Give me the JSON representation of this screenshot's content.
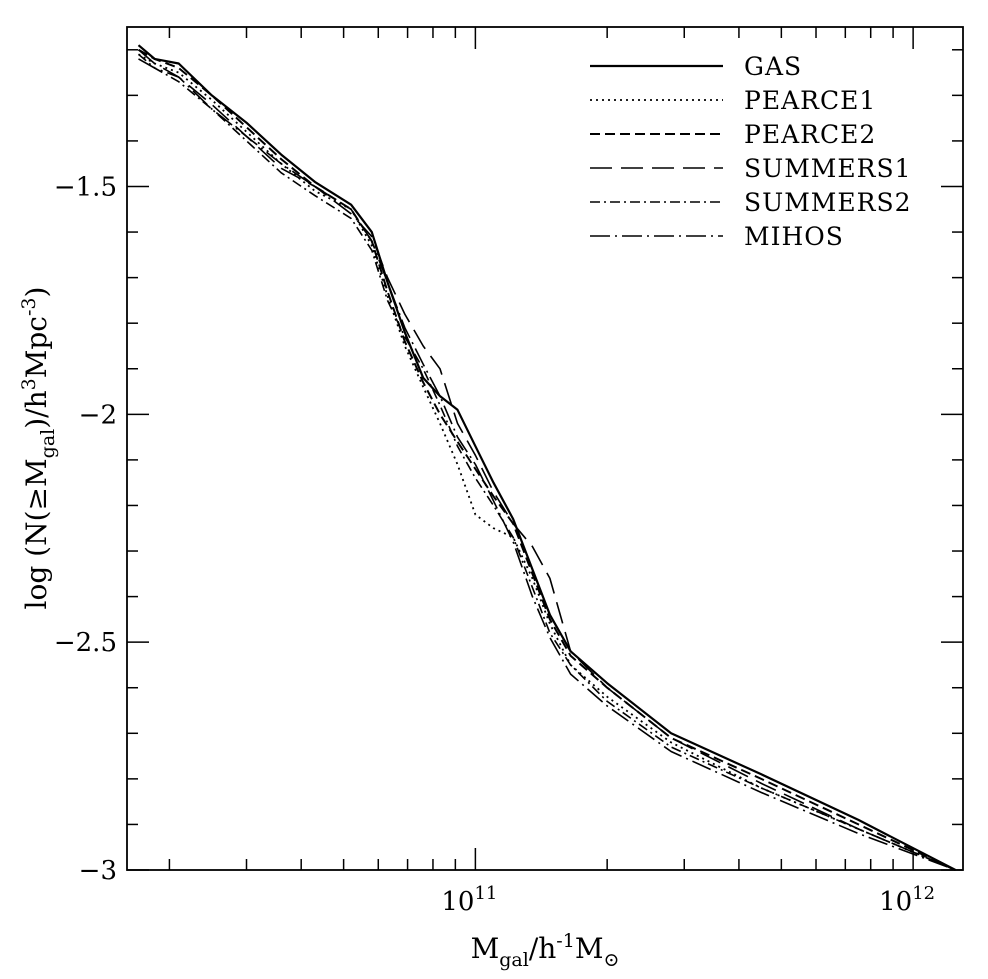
{
  "chart_data": {
    "type": "line",
    "title": "",
    "xlabel": {
      "main": "M",
      "sub1": "gal",
      "mid": "/h",
      "sup": "-1",
      "tail": "M",
      "sub2": "⊙"
    },
    "ylabel": {
      "lead": "log  (N(≥M",
      "sub": "gal",
      "mid": ")/h",
      "sup1": "3",
      "mpc": "Mpc",
      "sup2": "-3",
      "tail": ")"
    },
    "x_scale": "log",
    "xlim": [
      16000000000.0,
      1300000000000.0
    ],
    "ylim": [
      -3.0,
      -1.15
    ],
    "x_ticks": [
      {
        "base": "10",
        "exp": "11",
        "value": 100000000000.0
      },
      {
        "base": "10",
        "exp": "12",
        "value": 1000000000000.0
      }
    ],
    "y_ticks": [
      {
        "label": "−1.5",
        "value": -1.5
      },
      {
        "label": "−2",
        "value": -2.0
      },
      {
        "label": "−2.5",
        "value": -2.5
      },
      {
        "label": "−3",
        "value": -3.0
      }
    ],
    "legend_position": "top-right",
    "series": [
      {
        "name": "GAS",
        "dash": "solid",
        "width": 2.2,
        "x": [
          17000000000.0,
          18500000000.0,
          21000000000.0,
          25000000000.0,
          30000000000.0,
          36000000000.0,
          43000000000.0,
          52000000000.0,
          58000000000.0,
          63000000000.0,
          69000000000.0,
          76000000000.0,
          83000000000.0,
          91000000000.0,
          100000000000.0,
          110000000000.0,
          122000000000.0,
          135000000000.0,
          148000000000.0,
          165000000000.0,
          200000000000.0,
          280000000000.0,
          450000000000.0,
          750000000000.0,
          1250000000000.0
        ],
        "y": [
          -1.19,
          -1.22,
          -1.23,
          -1.3,
          -1.36,
          -1.43,
          -1.49,
          -1.54,
          -1.6,
          -1.71,
          -1.82,
          -1.92,
          -1.96,
          -1.99,
          -2.07,
          -2.15,
          -2.23,
          -2.34,
          -2.44,
          -2.52,
          -2.59,
          -2.7,
          -2.79,
          -2.89,
          -3.0
        ]
      },
      {
        "name": "PEARCE1",
        "dash": "2,4",
        "width": 1.8,
        "x": [
          17000000000.0,
          18500000000.0,
          21000000000.0,
          25000000000.0,
          30000000000.0,
          36000000000.0,
          43000000000.0,
          52000000000.0,
          58000000000.0,
          63000000000.0,
          69000000000.0,
          76000000000.0,
          83000000000.0,
          91000000000.0,
          100000000000.0,
          110000000000.0,
          122000000000.0,
          135000000000.0,
          148000000000.0,
          165000000000.0,
          200000000000.0,
          280000000000.0,
          450000000000.0,
          750000000000.0,
          1250000000000.0
        ],
        "y": [
          -1.21,
          -1.23,
          -1.25,
          -1.31,
          -1.38,
          -1.45,
          -1.51,
          -1.55,
          -1.63,
          -1.74,
          -1.85,
          -1.94,
          -2.02,
          -2.11,
          -2.22,
          -2.25,
          -2.27,
          -2.36,
          -2.46,
          -2.55,
          -2.62,
          -2.72,
          -2.82,
          -2.91,
          -3.0
        ]
      },
      {
        "name": "PEARCE2",
        "dash": "10,5",
        "width": 2.0,
        "x": [
          17000000000.0,
          18500000000.0,
          21000000000.0,
          25000000000.0,
          30000000000.0,
          36000000000.0,
          43000000000.0,
          52000000000.0,
          58000000000.0,
          63000000000.0,
          69000000000.0,
          76000000000.0,
          83000000000.0,
          91000000000.0,
          100000000000.0,
          110000000000.0,
          122000000000.0,
          135000000000.0,
          148000000000.0,
          165000000000.0,
          200000000000.0,
          280000000000.0,
          450000000000.0,
          750000000000.0,
          1250000000000.0
        ],
        "y": [
          -1.2,
          -1.22,
          -1.24,
          -1.3,
          -1.37,
          -1.44,
          -1.5,
          -1.55,
          -1.62,
          -1.73,
          -1.84,
          -1.93,
          -2.0,
          -2.06,
          -2.12,
          -2.18,
          -2.24,
          -2.35,
          -2.45,
          -2.53,
          -2.6,
          -2.71,
          -2.8,
          -2.9,
          -3.0
        ]
      },
      {
        "name": "SUMMERS1",
        "dash": "22,9",
        "width": 1.6,
        "x": [
          17000000000.0,
          18500000000.0,
          21000000000.0,
          25000000000.0,
          30000000000.0,
          36000000000.0,
          43000000000.0,
          52000000000.0,
          58000000000.0,
          63000000000.0,
          69000000000.0,
          76000000000.0,
          83000000000.0,
          91000000000.0,
          100000000000.0,
          110000000000.0,
          122000000000.0,
          135000000000.0,
          148000000000.0,
          165000000000.0,
          200000000000.0,
          280000000000.0,
          450000000000.0,
          750000000000.0,
          1250000000000.0
        ],
        "y": [
          -1.2,
          -1.23,
          -1.26,
          -1.32,
          -1.39,
          -1.46,
          -1.5,
          -1.56,
          -1.61,
          -1.7,
          -1.78,
          -1.85,
          -1.9,
          -2.02,
          -2.09,
          -2.17,
          -2.24,
          -2.29,
          -2.36,
          -2.52,
          -2.6,
          -2.71,
          -2.81,
          -2.91,
          -3.0
        ]
      },
      {
        "name": "SUMMERS2",
        "dash": "10,4,2,4",
        "width": 1.6,
        "x": [
          17000000000.0,
          18500000000.0,
          21000000000.0,
          25000000000.0,
          30000000000.0,
          36000000000.0,
          43000000000.0,
          52000000000.0,
          58000000000.0,
          63000000000.0,
          69000000000.0,
          76000000000.0,
          83000000000.0,
          91000000000.0,
          100000000000.0,
          110000000000.0,
          122000000000.0,
          135000000000.0,
          148000000000.0,
          165000000000.0,
          200000000000.0,
          280000000000.0,
          450000000000.0,
          750000000000.0,
          1250000000000.0
        ],
        "y": [
          -1.21,
          -1.24,
          -1.27,
          -1.33,
          -1.4,
          -1.47,
          -1.52,
          -1.57,
          -1.64,
          -1.75,
          -1.83,
          -1.9,
          -1.98,
          -2.07,
          -2.14,
          -2.2,
          -2.27,
          -2.38,
          -2.48,
          -2.55,
          -2.63,
          -2.73,
          -2.82,
          -2.91,
          -3.0
        ]
      },
      {
        "name": "MIHOS",
        "dash": "20,5,2,5",
        "width": 1.6,
        "x": [
          17000000000.0,
          18500000000.0,
          21000000000.0,
          25000000000.0,
          30000000000.0,
          36000000000.0,
          43000000000.0,
          52000000000.0,
          58000000000.0,
          63000000000.0,
          69000000000.0,
          76000000000.0,
          83000000000.0,
          91000000000.0,
          100000000000.0,
          110000000000.0,
          122000000000.0,
          135000000000.0,
          148000000000.0,
          165000000000.0,
          200000000000.0,
          280000000000.0,
          450000000000.0,
          750000000000.0,
          1250000000000.0
        ],
        "y": [
          -1.22,
          -1.24,
          -1.26,
          -1.33,
          -1.39,
          -1.45,
          -1.5,
          -1.55,
          -1.62,
          -1.71,
          -1.81,
          -1.89,
          -1.96,
          -2.05,
          -2.11,
          -2.19,
          -2.28,
          -2.4,
          -2.49,
          -2.57,
          -2.64,
          -2.74,
          -2.83,
          -2.92,
          -3.0
        ]
      }
    ]
  }
}
